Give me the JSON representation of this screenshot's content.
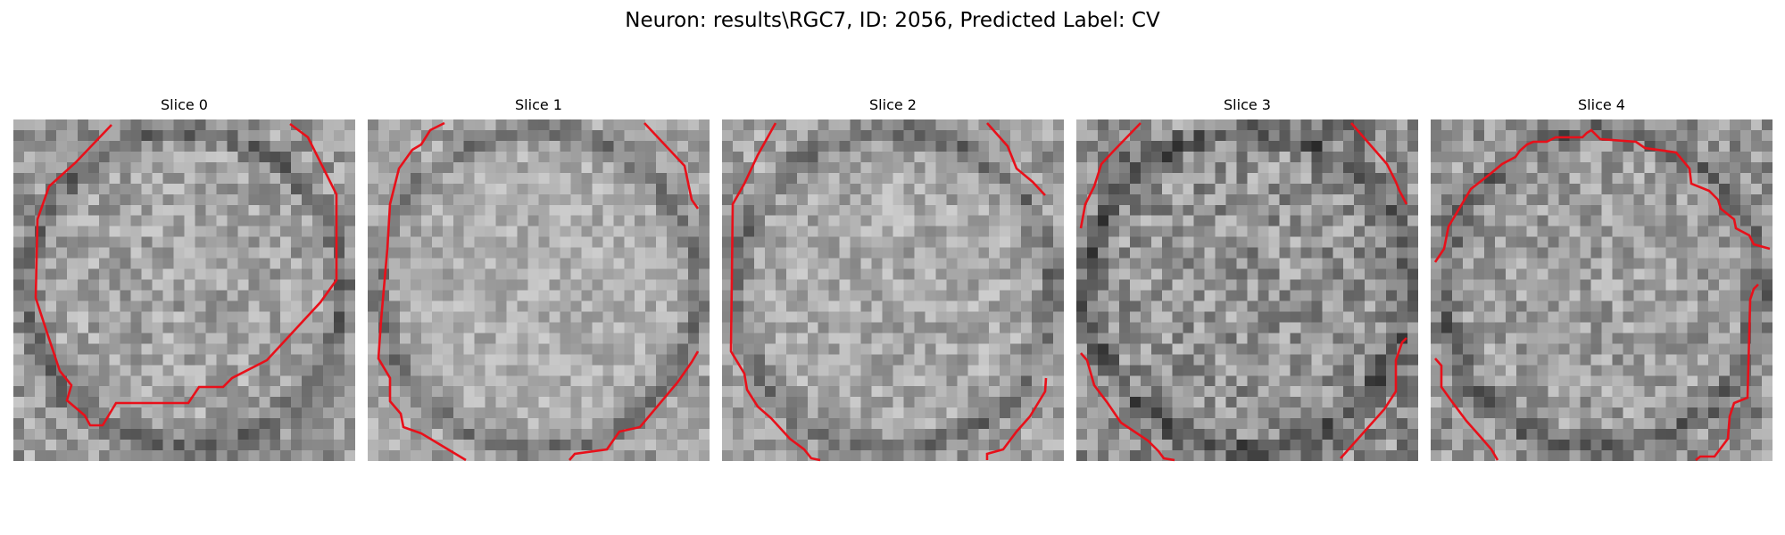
{
  "figure": {
    "title": "Neuron: results\\RGC7, ID: 2056, Predicted Label: CV"
  },
  "panels": [
    {
      "title": "Slice 0",
      "brightness": 0.64,
      "contrast": 0.16
    },
    {
      "title": "Slice 1",
      "brightness": 0.68,
      "contrast": 0.13
    },
    {
      "title": "Slice 2",
      "brightness": 0.66,
      "contrast": 0.15
    },
    {
      "title": "Slice 3",
      "brightness": 0.58,
      "contrast": 0.2
    },
    {
      "title": "Slice 4",
      "brightness": 0.62,
      "contrast": 0.17
    }
  ],
  "colors": {
    "contour": "#e8101a",
    "background": "#ffffff"
  }
}
